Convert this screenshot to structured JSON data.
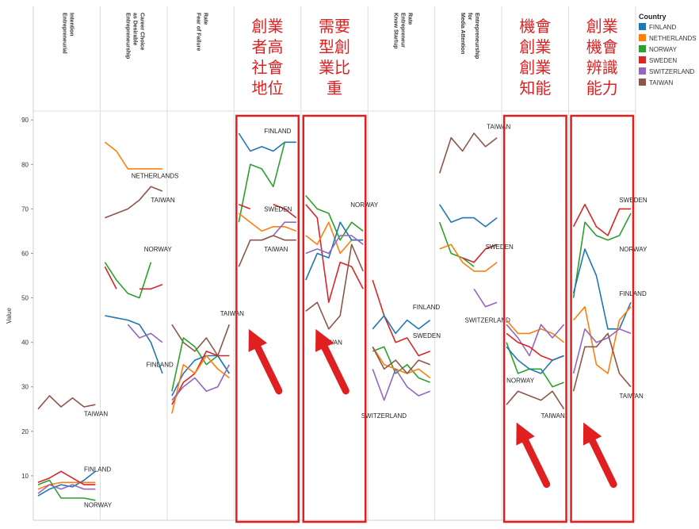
{
  "chart_data": {
    "type": "line",
    "ylabel": "Value",
    "ylim": [
      0,
      92
    ],
    "yticks": [
      10,
      20,
      30,
      40,
      50,
      60,
      70,
      80,
      90
    ],
    "legend": {
      "title": "Country",
      "position": "top-right",
      "entries": [
        "FINLAND",
        "NETHERLANDS",
        "NORWAY",
        "SWEDEN",
        "SWITZERLAND",
        "TAIWAN"
      ]
    },
    "colors": {
      "FINLAND": "#1f77b4",
      "NETHERLANDS": "#ff7f0e",
      "NORWAY": "#2ca02c",
      "SWEDEN": "#d62728",
      "SWITZERLAND": "#9467bd",
      "TAIWAN": "#8c564b"
    },
    "highlight_color": "#e02020",
    "panels": [
      {
        "title": "Entrepreneurial Intention",
        "annotations": [
          {
            "text": "TAIWAN",
            "x": 4,
            "y": 24
          },
          {
            "text": "FINLAND",
            "x": 4,
            "y": 11.5
          },
          {
            "text": "NORWAY",
            "x": 4,
            "y": 3.5
          }
        ],
        "series": [
          {
            "name": "TAIWAN",
            "values": [
              25,
              28,
              25.5,
              27.5,
              25.5,
              26
            ]
          },
          {
            "name": "FINLAND",
            "values": [
              5.5,
              7,
              8,
              7.5,
              9,
              11
            ]
          },
          {
            "name": "NETHERLANDS",
            "values": [
              7,
              8,
              8.5,
              8.5,
              8.5,
              8.5
            ]
          },
          {
            "name": "NORWAY",
            "values": [
              8,
              9,
              5,
              5,
              5,
              4.5
            ]
          },
          {
            "name": "SWEDEN",
            "values": [
              8.5,
              9.5,
              11,
              9.5,
              8,
              8
            ]
          },
          {
            "name": "SWITZERLAND",
            "values": [
              6,
              8,
              7,
              8,
              7,
              7
            ]
          }
        ]
      },
      {
        "title": "Entrepreneurship as Desirable Career Choice",
        "annotations": [
          {
            "text": "NETHERLANDS",
            "x": 2.3,
            "y": 77.5
          },
          {
            "text": "TAIWAN",
            "x": 4,
            "y": 72
          },
          {
            "text": "NORWAY",
            "x": 3.4,
            "y": 61
          },
          {
            "text": "FINLAND",
            "x": 3.6,
            "y": 35
          }
        ],
        "series": [
          {
            "name": "NETHERLANDS",
            "values": [
              85,
              83,
              79,
              79,
              79,
              79
            ]
          },
          {
            "name": "TAIWAN",
            "values": [
              68,
              69,
              70,
              72,
              75,
              74
            ]
          },
          {
            "name": "NORWAY",
            "values": [
              58,
              54,
              51,
              50,
              58,
              null
            ]
          },
          {
            "name": "SWEDEN",
            "values": [
              57,
              52,
              null,
              52,
              52,
              53
            ]
          },
          {
            "name": "FINLAND",
            "values": [
              46,
              45.5,
              45,
              44,
              40,
              33
            ]
          },
          {
            "name": "SWITZERLAND",
            "values": [
              null,
              null,
              44,
              41,
              42,
              40
            ]
          }
        ]
      },
      {
        "title": "Fear of Failure Rate",
        "annotations": [
          {
            "text": "TAIWAN",
            "x": 4.2,
            "y": 46.5
          }
        ],
        "series": [
          {
            "name": "TAIWAN",
            "values": [
              44,
              40,
              38,
              41,
              37,
              44
            ]
          },
          {
            "name": "NORWAY",
            "values": [
              29,
              41,
              39,
              35,
              37,
              33
            ]
          },
          {
            "name": "FINLAND",
            "values": [
              28,
              33,
              36,
              37,
              37,
              33
            ]
          },
          {
            "name": "SWEDEN",
            "values": [
              26,
              31,
              33,
              38,
              37,
              37
            ]
          },
          {
            "name": "NETHERLANDS",
            "values": [
              24,
              35,
              33,
              37,
              34,
              32
            ]
          },
          {
            "name": "SWITZERLAND",
            "values": [
              27,
              30,
              32,
              29,
              30,
              35
            ]
          }
        ]
      },
      {
        "title": "創業者高社會地位",
        "highlighted": true,
        "annotations": [
          {
            "text": "FINLAND",
            "x": 2.2,
            "y": 87.5
          },
          {
            "text": "SWEDEN",
            "x": 2.2,
            "y": 70
          },
          {
            "text": "TAIWAN",
            "x": 2.2,
            "y": 61
          }
        ],
        "series": [
          {
            "name": "FINLAND",
            "values": [
              87,
              83,
              84,
              83,
              85,
              85
            ]
          },
          {
            "name": "NORWAY",
            "values": [
              67,
              80,
              79,
              75,
              85,
              null
            ]
          },
          {
            "name": "SWEDEN",
            "values": [
              71,
              70,
              null,
              71,
              70,
              68
            ]
          },
          {
            "name": "NETHERLANDS",
            "values": [
              69,
              67,
              65,
              66,
              66,
              65
            ]
          },
          {
            "name": "SWITZERLAND",
            "values": [
              null,
              null,
              63,
              64,
              67,
              67
            ]
          },
          {
            "name": "TAIWAN",
            "values": [
              57,
              63,
              63,
              64,
              63,
              63
            ]
          }
        ]
      },
      {
        "title": "需要型創業比重",
        "highlighted": true,
        "annotations": [
          {
            "text": "NORWAY",
            "x": 3.9,
            "y": 71
          },
          {
            "text": "TAIWAN",
            "x": 1.1,
            "y": 40
          }
        ],
        "series": [
          {
            "name": "NORWAY",
            "values": [
              73,
              70,
              69,
              63,
              67,
              65
            ]
          },
          {
            "name": "SWEDEN",
            "values": [
              71,
              68,
              49,
              58,
              57,
              52
            ]
          },
          {
            "name": "NETHERLANDS",
            "values": [
              64,
              62,
              67,
              60,
              63,
              63
            ]
          },
          {
            "name": "FINLAND",
            "values": [
              54,
              60,
              59,
              67,
              63,
              63
            ]
          },
          {
            "name": "SWITZERLAND",
            "values": [
              60,
              61,
              60,
              64,
              64,
              62
            ]
          },
          {
            "name": "TAIWAN",
            "values": [
              47,
              49,
              43,
              46,
              62,
              56
            ]
          }
        ]
      },
      {
        "title": "Know Startup Entrepreneur Rate",
        "annotations": [
          {
            "text": "FINLAND",
            "x": 3.5,
            "y": 48
          },
          {
            "text": "SWEDEN",
            "x": 3.5,
            "y": 41.5
          },
          {
            "text": "SWITZERLAND",
            "x": -1,
            "y": 23.5
          }
        ],
        "series": [
          {
            "name": "SWEDEN",
            "values": [
              54,
              46,
              40,
              41,
              37,
              38
            ]
          },
          {
            "name": "FINLAND",
            "values": [
              43,
              46,
              42,
              45,
              43,
              45
            ]
          },
          {
            "name": "NORWAY",
            "values": [
              38,
              39,
              33,
              35,
              32,
              31
            ]
          },
          {
            "name": "NETHERLANDS",
            "values": [
              39,
              35,
              34,
              33,
              34,
              32
            ]
          },
          {
            "name": "TAIWAN",
            "values": [
              39,
              34,
              36,
              33,
              36,
              35
            ]
          },
          {
            "name": "SWITZERLAND",
            "values": [
              34,
              27,
              34,
              30,
              28,
              29
            ]
          }
        ]
      },
      {
        "title": "Media Attention for Entrepreneurship",
        "annotations": [
          {
            "text": "TAIWAN",
            "x": 4.1,
            "y": 88.5
          },
          {
            "text": "SWEDEN",
            "x": 4,
            "y": 61.5
          },
          {
            "text": "SWITZERLAND",
            "x": 2.2,
            "y": 45
          }
        ],
        "series": [
          {
            "name": "TAIWAN",
            "values": [
              78,
              86,
              83,
              87,
              84,
              86
            ]
          },
          {
            "name": "FINLAND",
            "values": [
              71,
              67,
              68,
              68,
              66,
              68
            ]
          },
          {
            "name": "NORWAY",
            "values": [
              67,
              60,
              59,
              57,
              null,
              null
            ]
          },
          {
            "name": "NETHERLANDS",
            "values": [
              61,
              62,
              58,
              56,
              56,
              58
            ]
          },
          {
            "name": "SWEDEN",
            "values": [
              null,
              null,
              59,
              58,
              61,
              62
            ]
          },
          {
            "name": "SWITZERLAND",
            "values": [
              null,
              null,
              null,
              52,
              48,
              49
            ]
          }
        ]
      },
      {
        "title": "機會創業創業知能",
        "highlighted": true,
        "annotations": [
          {
            "text": "NORWAY",
            "x": 0,
            "y": 31.5
          },
          {
            "text": "TAIWAN",
            "x": 3,
            "y": 23.5
          }
        ],
        "series": [
          {
            "name": "NETHERLANDS",
            "values": [
              45,
              42,
              42,
              43,
              42,
              40
            ]
          },
          {
            "name": "SWITZERLAND",
            "values": [
              44,
              41,
              37,
              44,
              41,
              44
            ]
          },
          {
            "name": "SWEDEN",
            "values": [
              42,
              40,
              39,
              37,
              36,
              37
            ]
          },
          {
            "name": "NORWAY",
            "values": [
              40,
              33,
              34,
              34,
              30,
              31
            ]
          },
          {
            "name": "FINLAND",
            "values": [
              39,
              36,
              34,
              33,
              36,
              37
            ]
          },
          {
            "name": "TAIWAN",
            "values": [
              26,
              29,
              28,
              27,
              29,
              25
            ]
          }
        ]
      },
      {
        "title": "創業機會辨識能力",
        "highlighted": true,
        "annotations": [
          {
            "text": "SWEDEN",
            "x": 4,
            "y": 72
          },
          {
            "text": "NORWAY",
            "x": 4,
            "y": 61
          },
          {
            "text": "FINLAND",
            "x": 4,
            "y": 51
          },
          {
            "text": "TAIWAN",
            "x": 4,
            "y": 28
          }
        ],
        "series": [
          {
            "name": "SWEDEN",
            "values": [
              66,
              71,
              66,
              64,
              70,
              70
            ]
          },
          {
            "name": "NORWAY",
            "values": [
              50,
              67,
              64,
              63,
              64,
              69
            ]
          },
          {
            "name": "FINLAND",
            "values": [
              51,
              61,
              55,
              43,
              43,
              49
            ]
          },
          {
            "name": "NETHERLANDS",
            "values": [
              45,
              48,
              35,
              33,
              45,
              48
            ]
          },
          {
            "name": "SWITZERLAND",
            "values": [
              33,
              43,
              40,
              41,
              43,
              42
            ]
          },
          {
            "name": "TAIWAN",
            "values": [
              29,
              39,
              39,
              42,
              33,
              30
            ]
          }
        ]
      }
    ]
  }
}
